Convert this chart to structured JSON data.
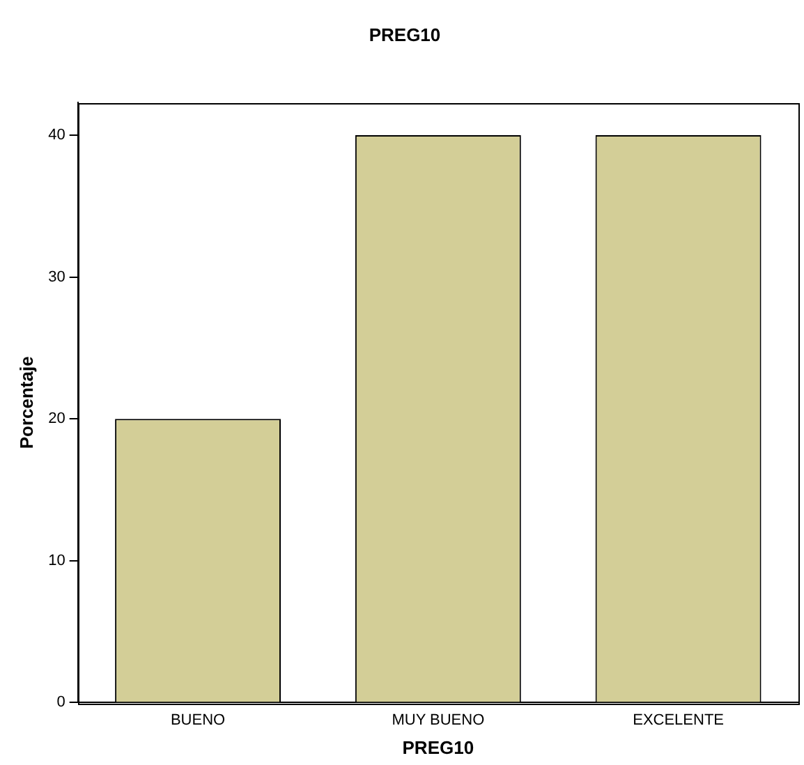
{
  "chart_data": {
    "type": "bar",
    "title": "PREG10",
    "xlabel": "PREG10",
    "ylabel": "Porcentaje",
    "categories": [
      "BUENO",
      "MUY BUENO",
      "EXCELENTE"
    ],
    "values": [
      20,
      40,
      40
    ],
    "color": "#d3ce97",
    "ylim": [
      0,
      42.3
    ],
    "yticks": [
      0,
      10,
      20,
      30,
      40
    ],
    "grid": false,
    "legend": false
  }
}
